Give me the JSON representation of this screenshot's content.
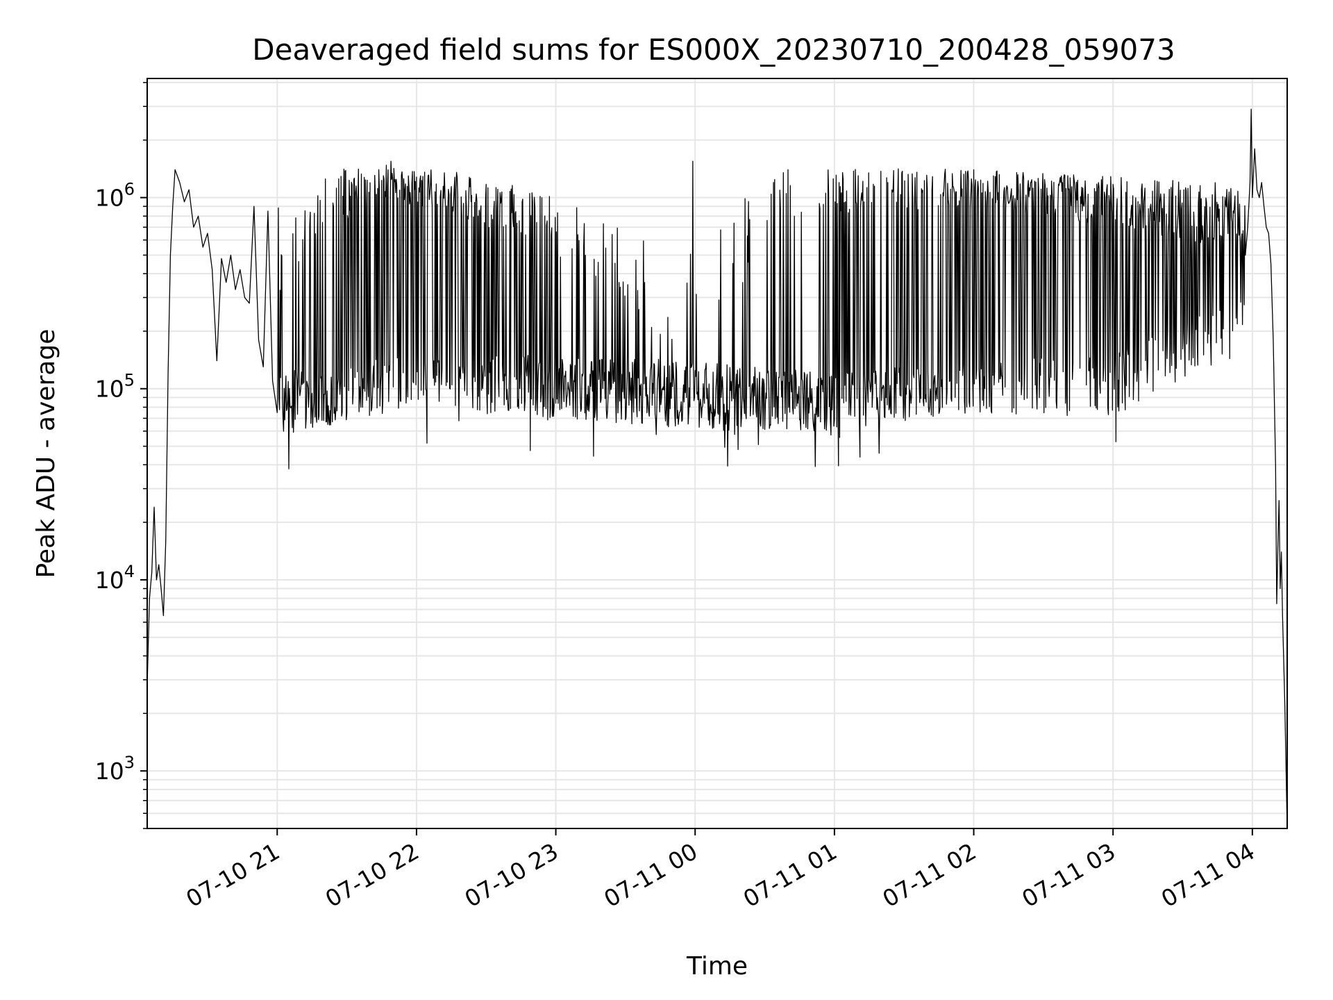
{
  "chart_data": {
    "type": "line",
    "title": "Deaveraged field sums for ES000X_20230710_200428_059073",
    "xlabel": "Time",
    "ylabel": "Peak ADU - average",
    "yscale": "log",
    "ylim": [
      500,
      4200000
    ],
    "xlim": [
      "2023-07-10 20:04",
      "2023-07-11 04:15"
    ],
    "grid": true,
    "x_ticks": [
      {
        "t": "2023-07-10 21:00",
        "label": "07-10 21"
      },
      {
        "t": "2023-07-10 22:00",
        "label": "07-10 22"
      },
      {
        "t": "2023-07-10 23:00",
        "label": "07-10 23"
      },
      {
        "t": "2023-07-11 00:00",
        "label": "07-11 00"
      },
      {
        "t": "2023-07-11 01:00",
        "label": "07-11 01"
      },
      {
        "t": "2023-07-11 02:00",
        "label": "07-11 02"
      },
      {
        "t": "2023-07-11 03:00",
        "label": "07-11 03"
      },
      {
        "t": "2023-07-11 04:00",
        "label": "07-11 04"
      }
    ],
    "y_ticks": [
      {
        "value": 1000,
        "base": "10",
        "exp": "3"
      },
      {
        "value": 10000,
        "base": "10",
        "exp": "4"
      },
      {
        "value": 100000,
        "base": "10",
        "exp": "5"
      },
      {
        "value": 1000000,
        "base": "10",
        "exp": "6"
      }
    ],
    "series": [
      {
        "color": "#000000",
        "points": [
          [
            "2023-07-10 20:04",
            2800
          ],
          [
            "2023-07-10 20:05",
            8000
          ],
          [
            "2023-07-10 20:06",
            11000
          ],
          [
            "2023-07-10 20:07",
            24000
          ],
          [
            "2023-07-10 20:08",
            10000
          ],
          [
            "2023-07-10 20:09",
            12000
          ],
          [
            "2023-07-10 20:10",
            9000
          ],
          [
            "2023-07-10 20:11",
            6500
          ],
          [
            "2023-07-10 20:12",
            16000
          ],
          [
            "2023-07-10 20:13",
            120000
          ],
          [
            "2023-07-10 20:14",
            500000
          ],
          [
            "2023-07-10 20:15",
            900000
          ],
          [
            "2023-07-10 20:16",
            1400000
          ],
          [
            "2023-07-10 20:18",
            1200000
          ],
          [
            "2023-07-10 20:20",
            950000
          ],
          [
            "2023-07-10 20:22",
            1100000
          ],
          [
            "2023-07-10 20:24",
            700000
          ],
          [
            "2023-07-10 20:26",
            800000
          ],
          [
            "2023-07-10 20:28",
            550000
          ],
          [
            "2023-07-10 20:30",
            650000
          ],
          [
            "2023-07-10 20:32",
            420000
          ],
          [
            "2023-07-10 20:34",
            140000
          ],
          [
            "2023-07-10 20:36",
            480000
          ],
          [
            "2023-07-10 20:38",
            360000
          ],
          [
            "2023-07-10 20:40",
            500000
          ],
          [
            "2023-07-10 20:42",
            330000
          ],
          [
            "2023-07-10 20:44",
            420000
          ],
          [
            "2023-07-10 20:46",
            300000
          ],
          [
            "2023-07-10 20:48",
            280000
          ],
          [
            "2023-07-10 20:50",
            900000
          ],
          [
            "2023-07-10 20:52",
            180000
          ],
          [
            "2023-07-10 20:54",
            130000
          ],
          [
            "2023-07-10 20:56",
            850000
          ],
          [
            "2023-07-10 20:58",
            110000
          ],
          [
            "2023-07-10 21:00",
            75000
          ]
        ],
        "band": {
          "from": "2023-07-10 21:00",
          "to": "2023-07-11 03:57",
          "sample_minutes": 0.25,
          "high_segments": [
            [
              "2023-07-10 21:00",
              300000,
              900000
            ],
            [
              "2023-07-10 21:20",
              600000,
              1400000
            ],
            [
              "2023-07-10 21:45",
              1000000,
              1500000
            ],
            [
              "2023-07-10 22:30",
              700000,
              1300000
            ],
            [
              "2023-07-10 23:00",
              500000,
              1000000
            ],
            [
              "2023-07-10 23:40",
              200000,
              600000
            ],
            [
              "2023-07-11 00:00",
              130000,
              500000
            ],
            [
              "2023-07-11 00:35",
              500000,
              1300000
            ],
            [
              "2023-07-11 01:00",
              800000,
              1450000
            ],
            [
              "2023-07-11 02:00",
              900000,
              1400000
            ],
            [
              "2023-07-11 03:00",
              700000,
              1300000
            ],
            [
              "2023-07-11 03:57",
              500000,
              1200000
            ]
          ],
          "low_segments": [
            [
              "2023-07-10 21:00",
              55000,
              130000
            ],
            [
              "2023-07-10 22:00",
              80000,
              150000
            ],
            [
              "2023-07-10 23:00",
              70000,
              150000
            ],
            [
              "2023-07-11 00:00",
              60000,
              140000
            ],
            [
              "2023-07-11 01:00",
              60000,
              120000
            ],
            [
              "2023-07-11 02:00",
              75000,
              140000
            ],
            [
              "2023-07-11 03:00",
              70000,
              150000
            ],
            [
              "2023-07-11 03:57",
              150000,
              300000
            ]
          ],
          "spike_fraction": [
            [
              "2023-07-10 21:00",
              0.15
            ],
            [
              "2023-07-10 21:30",
              0.5
            ],
            [
              "2023-07-10 22:00",
              0.6
            ],
            [
              "2023-07-10 23:00",
              0.35
            ],
            [
              "2023-07-10 23:30",
              0.15
            ],
            [
              "2023-07-11 00:00",
              0.04
            ],
            [
              "2023-07-11 00:40",
              0.1
            ],
            [
              "2023-07-11 01:00",
              0.3
            ],
            [
              "2023-07-11 02:00",
              0.55
            ],
            [
              "2023-07-11 03:00",
              0.6
            ],
            [
              "2023-07-11 03:57",
              0.7
            ]
          ],
          "isolated_spikes": [
            [
              "2023-07-10 23:59",
              1550000
            ],
            [
              "2023-07-11 00:38",
              1350000
            ],
            [
              "2023-07-11 00:40",
              1400000
            ],
            [
              "2023-07-10 21:49",
              1550000
            ]
          ]
        },
        "tail_points": [
          [
            "2023-07-11 03:57",
            500000
          ],
          [
            "2023-07-11 03:58",
            700000
          ],
          [
            "2023-07-11 03:59",
            1200000
          ],
          [
            "2023-07-11 03:59:30",
            2900000
          ],
          [
            "2023-07-11 04:00",
            1000000
          ],
          [
            "2023-07-11 04:01",
            1800000
          ],
          [
            "2023-07-11 04:02",
            1100000
          ],
          [
            "2023-07-11 04:03",
            1000000
          ],
          [
            "2023-07-11 04:04",
            1200000
          ],
          [
            "2023-07-11 04:05",
            900000
          ],
          [
            "2023-07-11 04:06",
            700000
          ],
          [
            "2023-07-11 04:07",
            650000
          ],
          [
            "2023-07-11 04:08",
            450000
          ],
          [
            "2023-07-11 04:09",
            180000
          ],
          [
            "2023-07-11 04:10",
            40000
          ],
          [
            "2023-07-11 04:10:30",
            7500
          ],
          [
            "2023-07-11 04:11",
            15000
          ],
          [
            "2023-07-11 04:11:30",
            26000
          ],
          [
            "2023-07-11 04:12",
            9000
          ],
          [
            "2023-07-11 04:12:30",
            14000
          ],
          [
            "2023-07-11 04:13",
            6500
          ],
          [
            "2023-07-11 04:14",
            2200
          ],
          [
            "2023-07-11 04:15",
            500
          ]
        ]
      }
    ]
  }
}
